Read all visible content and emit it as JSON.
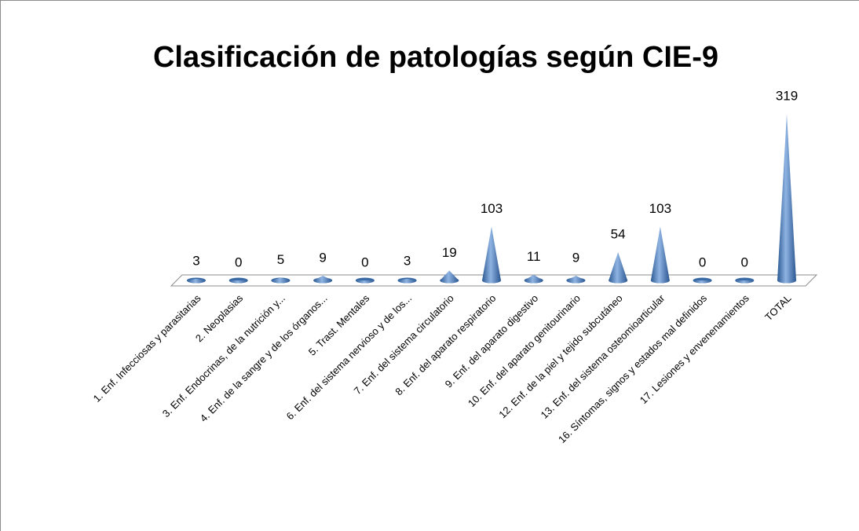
{
  "chart_data": {
    "type": "cone",
    "title": "Clasificación de patologías según CIE-9",
    "categories": [
      "1. Enf. Infecciosas y parasitarias",
      "2. Neoplasias",
      "3. Enf. Endocrinas, de la nutrición y...",
      "4. Enf. de la sangre y de los órganos...",
      "5. Trast. Mentales",
      "6. Enf. del sistema nervioso y de los...",
      "7. Enf.  del sistema circulatorio",
      "8. Enf.  del aparato respiratorio",
      "9. Enf. del aparato digestivo",
      "10. Enf. del aparato genitourinario",
      "12. Enf. de la piel y tejido subcutáneo",
      "13. Enf.  del sistema osteomioarticular",
      "16. Síntomas, signos y estados mal definidos",
      "17. Lesiones y envenenamientos",
      "TOTAL"
    ],
    "values": [
      3,
      0,
      5,
      9,
      0,
      3,
      19,
      103,
      11,
      9,
      54,
      103,
      0,
      0,
      319
    ],
    "color": "#4f81bd"
  }
}
